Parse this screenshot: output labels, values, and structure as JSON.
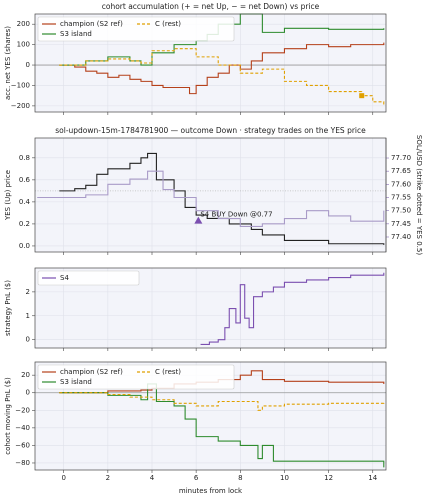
{
  "chart_data": [
    {
      "type": "line",
      "title": "cohort accumulation (+ = net Up, − = net Down) vs price",
      "ylabel": "acc. net YES (shares)",
      "xlim": [
        -1.3,
        14.6
      ],
      "xticks": [
        0,
        2,
        4,
        6,
        8,
        10,
        12,
        14
      ],
      "show_xticklabels": false,
      "ylim": [
        -230,
        250
      ],
      "yticks": [
        {
          "value": -200,
          "label": "−200"
        },
        {
          "value": -100,
          "label": "−100"
        },
        0,
        100,
        200
      ],
      "grid": true,
      "zero_line": true,
      "drawstyle": "steps-post",
      "legend": "upper left",
      "legend_columns": 2,
      "series": [
        {
          "name": "champion (S2 ref)",
          "color": "#b5401a",
          "dashed": false,
          "x": [
            -0.2,
            0.5,
            1,
            1.5,
            2,
            2.5,
            3,
            3.5,
            4,
            4.5,
            5,
            5.7,
            6,
            6.5,
            7,
            7.5,
            8,
            8.5,
            9,
            10,
            11,
            12,
            13,
            14.5
          ],
          "values": [
            0,
            -10,
            -30,
            -40,
            -60,
            -50,
            -70,
            -80,
            -100,
            -110,
            -110,
            -140,
            -100,
            -60,
            -40,
            0,
            -20,
            20,
            60,
            80,
            100,
            90,
            100,
            110
          ]
        },
        {
          "name": "S3 island",
          "color": "#2e8b2e",
          "dashed": false,
          "x": [
            -0.2,
            1,
            2,
            3,
            3.5,
            4,
            5,
            6,
            6.5,
            7,
            8,
            9,
            10,
            12,
            14.5
          ],
          "values": [
            0,
            20,
            40,
            20,
            0,
            60,
            100,
            120,
            150,
            200,
            250,
            160,
            180,
            175,
            180
          ]
        },
        {
          "name": "C (rest)",
          "color": "#e0a000",
          "dashed": true,
          "x": [
            -0.2,
            1,
            2,
            3,
            3.5,
            4,
            5,
            6,
            7,
            8,
            9,
            10,
            11,
            12,
            13.5,
            14,
            14.5
          ],
          "values": [
            0,
            20,
            30,
            20,
            10,
            70,
            80,
            40,
            0,
            -40,
            -20,
            -80,
            -100,
            -130,
            -150,
            -180,
            -200
          ]
        }
      ],
      "markers": [
        {
          "x": 13.5,
          "y": -150,
          "color": "#e0a000",
          "shape": "square"
        }
      ]
    },
    {
      "type": "line",
      "title": "sol-updown-15m-1784781900 — outcome Down · strategy trades on the YES price",
      "ylabel": "YES (Up) price",
      "y2label": "SOL/USD (strike dotted = YES 0.5)",
      "y2color": "#8a70b8",
      "xlim": [
        -1.3,
        14.6
      ],
      "xticks": [
        0,
        2,
        4,
        6,
        8,
        10,
        12,
        14
      ],
      "show_xticklabels": false,
      "ylim": [
        -0.055,
        0.98
      ],
      "yticks": [
        {
          "value": 0,
          "label": "0.0"
        },
        0.2,
        0.4,
        0.6,
        0.8
      ],
      "y2lim": [
        77.343,
        77.776
      ],
      "y2ticks": [
        {
          "value": 77.4,
          "label": "77.40"
        },
        77.45,
        {
          "value": 77.5,
          "label": "77.50"
        },
        77.55,
        {
          "value": 77.6,
          "label": "77.60"
        },
        77.65,
        {
          "value": 77.7,
          "label": "77.70"
        }
      ],
      "grid": true,
      "drawstyle": "steps-post",
      "reference_line": 0.5,
      "series": [
        {
          "name": "YES price",
          "color": "#222222",
          "dashed": false,
          "x": [
            -0.2,
            0.5,
            1,
            1.5,
            2,
            3,
            3.5,
            3.8,
            4.2,
            5,
            5.5,
            6,
            6.5,
            7.5,
            8.5,
            9,
            10,
            12,
            14.5
          ],
          "values": [
            0.5,
            0.52,
            0.55,
            0.65,
            0.7,
            0.75,
            0.8,
            0.84,
            0.6,
            0.5,
            0.35,
            0.28,
            0.25,
            0.2,
            0.15,
            0.1,
            0.05,
            0.02,
            0.01
          ]
        },
        {
          "name": "SOL/USD",
          "color": "#a99bc8",
          "dashed": false,
          "axis": "y2",
          "x": [
            -1.2,
            0,
            1,
            2,
            3,
            3.8,
            4.5,
            5,
            6,
            7,
            8,
            9,
            10,
            11,
            12,
            13,
            14.5
          ],
          "values": [
            77.55,
            77.55,
            77.56,
            77.6,
            77.62,
            77.65,
            77.58,
            77.55,
            77.5,
            77.47,
            77.44,
            77.45,
            77.47,
            77.5,
            77.48,
            77.46,
            77.5
          ]
        }
      ],
      "markers": [
        {
          "x": 6.1,
          "y": 0.23,
          "color": "#7b4fb0",
          "shape": "triangle",
          "label": "S4 BUY Down @0.77"
        }
      ]
    },
    {
      "type": "line",
      "ylabel": "strategy PnL ($)",
      "xlim": [
        -1.3,
        14.6
      ],
      "xticks": [
        0,
        2,
        4,
        6,
        8,
        10,
        12,
        14
      ],
      "show_xticklabels": false,
      "ylim": [
        -0.35,
        3.0
      ],
      "yticks": [
        0,
        1,
        2
      ],
      "grid": true,
      "drawstyle": "steps-post",
      "legend": "upper left",
      "legend_columns": 1,
      "series": [
        {
          "name": "S4",
          "color": "#7b4fb0",
          "dashed": false,
          "x": [
            6.2,
            6.6,
            7,
            7.3,
            7.5,
            7.8,
            8,
            8.2,
            8.4,
            8.6,
            9,
            9.5,
            10,
            11,
            12,
            13,
            14.5
          ],
          "values": [
            -0.2,
            -0.1,
            0,
            0.5,
            1.3,
            0.7,
            2.3,
            0.9,
            0.5,
            1.8,
            2,
            2.2,
            2.4,
            2.5,
            2.6,
            2.7,
            2.8
          ]
        }
      ]
    },
    {
      "type": "line",
      "ylabel": "cohort moving PnL ($)",
      "xlabel": "minutes from lock",
      "xlim": [
        -1.3,
        14.6
      ],
      "xticks": [
        0,
        2,
        4,
        6,
        8,
        10,
        12,
        14
      ],
      "show_xticklabels": true,
      "ylim": [
        -88,
        35
      ],
      "yticks": [
        {
          "value": -80,
          "label": "−80"
        },
        {
          "value": -60,
          "label": "−60"
        },
        {
          "value": -40,
          "label": "−40"
        },
        {
          "value": -20,
          "label": "−20"
        },
        0,
        20
      ],
      "grid": true,
      "zero_line": true,
      "drawstyle": "steps-post",
      "legend": "upper left",
      "legend_columns": 2,
      "series": [
        {
          "name": "champion (S2 ref)",
          "color": "#b5401a",
          "dashed": false,
          "x": [
            -0.2,
            2,
            3.5,
            4,
            5,
            6,
            7,
            8,
            8.5,
            9,
            10,
            12,
            14.5
          ],
          "values": [
            0,
            2,
            3,
            5,
            10,
            12,
            15,
            20,
            25,
            15,
            13,
            12,
            10
          ]
        },
        {
          "name": "S3 island",
          "color": "#2e8b2e",
          "dashed": false,
          "x": [
            -0.2,
            2,
            3.5,
            3.8,
            4.2,
            5,
            5.5,
            6,
            7,
            8,
            8.8,
            9,
            9.5,
            14.5
          ],
          "values": [
            0,
            -3,
            -8,
            10,
            -10,
            -15,
            -30,
            -50,
            -55,
            -60,
            -75,
            -60,
            -78,
            -85
          ]
        },
        {
          "name": "C (rest)",
          "color": "#e0a000",
          "dashed": true,
          "x": [
            -0.2,
            2,
            3,
            4,
            5,
            6,
            7,
            8,
            8.8,
            9,
            10,
            12,
            14.5
          ],
          "values": [
            0,
            -2,
            -5,
            -8,
            -12,
            -15,
            -10,
            -10,
            -20,
            -15,
            -13,
            -12,
            -10
          ]
        }
      ]
    }
  ]
}
